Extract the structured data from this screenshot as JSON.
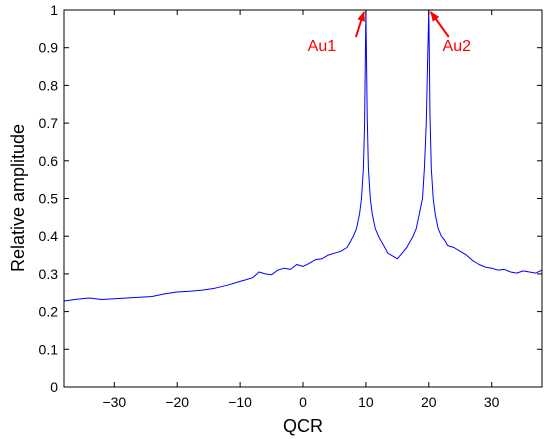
{
  "chart_data": {
    "type": "line",
    "title": "",
    "xlabel": "QCR",
    "ylabel": "Relative amplitude",
    "xlim": [
      -38,
      38
    ],
    "ylim": [
      0,
      1
    ],
    "xticks": [
      -30,
      -20,
      -10,
      0,
      10,
      20,
      30
    ],
    "xtick_labels": [
      "−30",
      "−20",
      "−10",
      "0",
      "10",
      "20",
      "30"
    ],
    "yticks": [
      0,
      0.1,
      0.2,
      0.3,
      0.4,
      0.5,
      0.6,
      0.7,
      0.8,
      0.9,
      1
    ],
    "ytick_labels": [
      "0",
      "0.1",
      "0.2",
      "0.3",
      "0.4",
      "0.5",
      "0.6",
      "0.7",
      "0.8",
      "0.9",
      "1"
    ],
    "grid": false,
    "series": [
      {
        "color": "#0000ff",
        "x": [
          -38,
          -36,
          -34,
          -32,
          -30,
          -28,
          -26,
          -24,
          -22,
          -20,
          -18,
          -16,
          -14,
          -12,
          -10,
          -9,
          -8,
          -7,
          -6,
          -5,
          -4,
          -3,
          -2,
          -1,
          0,
          1,
          2,
          3,
          4,
          5,
          6,
          7,
          7.5,
          8,
          8.5,
          9,
          9.3,
          9.6,
          9.8,
          10,
          10.2,
          10.4,
          10.7,
          11,
          11.5,
          12,
          12.5,
          13,
          13.5,
          14,
          14.5,
          15,
          15.5,
          16,
          16.5,
          17,
          17.5,
          18,
          18.5,
          19,
          19.3,
          19.6,
          19.8,
          20,
          20.2,
          20.4,
          20.7,
          21,
          21.5,
          22,
          22.5,
          23,
          24,
          25,
          26,
          27,
          28,
          29,
          30,
          31,
          32,
          33,
          34,
          35,
          36,
          37,
          38
        ],
        "y": [
          0.228,
          0.233,
          0.236,
          0.232,
          0.234,
          0.236,
          0.238,
          0.24,
          0.247,
          0.252,
          0.254,
          0.257,
          0.262,
          0.27,
          0.28,
          0.285,
          0.29,
          0.305,
          0.3,
          0.298,
          0.31,
          0.315,
          0.312,
          0.325,
          0.32,
          0.328,
          0.338,
          0.34,
          0.35,
          0.355,
          0.36,
          0.37,
          0.385,
          0.4,
          0.42,
          0.46,
          0.5,
          0.58,
          0.7,
          1.0,
          0.72,
          0.58,
          0.5,
          0.46,
          0.42,
          0.4,
          0.385,
          0.37,
          0.355,
          0.35,
          0.345,
          0.34,
          0.35,
          0.36,
          0.37,
          0.385,
          0.4,
          0.42,
          0.46,
          0.5,
          0.58,
          0.7,
          0.85,
          1.0,
          0.72,
          0.58,
          0.5,
          0.46,
          0.42,
          0.4,
          0.39,
          0.375,
          0.37,
          0.36,
          0.35,
          0.335,
          0.325,
          0.318,
          0.315,
          0.31,
          0.312,
          0.305,
          0.302,
          0.308,
          0.305,
          0.302,
          0.31
        ]
      }
    ],
    "annotations": [
      {
        "text": "Au1",
        "x": 10,
        "y": 1.0,
        "color": "#ff0000"
      },
      {
        "text": "Au2",
        "x": 20,
        "y": 1.0,
        "color": "#ff0000"
      }
    ]
  }
}
